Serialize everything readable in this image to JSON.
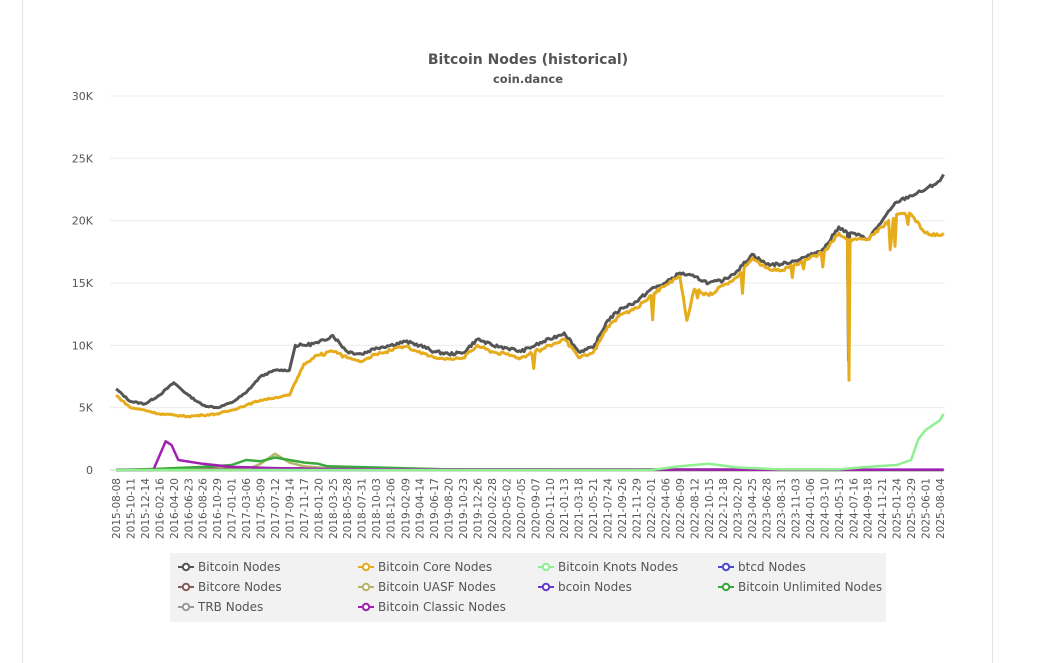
{
  "chart_data": {
    "type": "line",
    "title": "Bitcoin Nodes (historical)",
    "subtitle": "coin.dance",
    "xlabel": "",
    "ylabel": "",
    "ylim": [
      0,
      30000
    ],
    "y_ticks": [
      "0",
      "5K",
      "10K",
      "15K",
      "20K",
      "25K",
      "30K"
    ],
    "y_tick_values": [
      0,
      5000,
      10000,
      15000,
      20000,
      25000,
      30000
    ],
    "grid": true,
    "legend_position": "bottom",
    "x_ticks": [
      "2015-08-08",
      "2015-10-11",
      "2015-12-14",
      "2016-02-16",
      "2016-04-20",
      "2016-06-23",
      "2016-08-26",
      "2016-10-29",
      "2017-01-01",
      "2017-03-06",
      "2017-05-09",
      "2017-07-12",
      "2017-09-14",
      "2017-11-17",
      "2018-01-20",
      "2018-03-25",
      "2018-05-28",
      "2018-07-31",
      "2018-10-03",
      "2018-12-06",
      "2019-02-09",
      "2019-04-14",
      "2019-06-17",
      "2019-08-20",
      "2019-10-23",
      "2019-12-26",
      "2020-02-28",
      "2020-05-02",
      "2020-07-05",
      "2020-09-07",
      "2020-11-10",
      "2021-01-13",
      "2021-03-18",
      "2021-05-21",
      "2021-07-24",
      "2021-09-26",
      "2021-11-29",
      "2022-02-01",
      "2022-04-06",
      "2022-06-09",
      "2022-08-12",
      "2022-10-15",
      "2022-12-18",
      "2023-02-20",
      "2023-04-25",
      "2023-06-28",
      "2023-08-31",
      "2023-11-03",
      "2024-01-06",
      "2024-03-10",
      "2024-05-13",
      "2024-07-16",
      "2024-09-18",
      "2024-11-21",
      "2025-01-24",
      "2025-03-29",
      "2025-06-01",
      "2025-08-04"
    ],
    "x_range": [
      "2015-08-08",
      "2025-08-20"
    ],
    "series": [
      {
        "name": "Bitcoin Nodes",
        "color": "#555555",
        "points": [
          [
            "2015-08-08",
            6500
          ],
          [
            "2015-10-11",
            5500
          ],
          [
            "2015-12-14",
            5300
          ],
          [
            "2016-02-16",
            6000
          ],
          [
            "2016-04-20",
            7000
          ],
          [
            "2016-06-23",
            6000
          ],
          [
            "2016-08-26",
            5200
          ],
          [
            "2016-10-29",
            5000
          ],
          [
            "2017-01-01",
            5400
          ],
          [
            "2017-03-06",
            6200
          ],
          [
            "2017-05-09",
            7500
          ],
          [
            "2017-07-12",
            8000
          ],
          [
            "2017-09-14",
            8000
          ],
          [
            "2017-10-10",
            10000
          ],
          [
            "2017-11-17",
            10000
          ],
          [
            "2018-01-20",
            10200
          ],
          [
            "2018-03-25",
            10800
          ],
          [
            "2018-05-28",
            9500
          ],
          [
            "2018-07-31",
            9300
          ],
          [
            "2018-10-03",
            9800
          ],
          [
            "2018-12-06",
            10000
          ],
          [
            "2019-02-09",
            10300
          ],
          [
            "2019-04-14",
            10000
          ],
          [
            "2019-06-17",
            9500
          ],
          [
            "2019-08-20",
            9300
          ],
          [
            "2019-10-23",
            9400
          ],
          [
            "2019-12-26",
            10500
          ],
          [
            "2020-02-28",
            10000
          ],
          [
            "2020-05-02",
            9800
          ],
          [
            "2020-07-05",
            9500
          ],
          [
            "2020-09-07",
            10000
          ],
          [
            "2020-11-10",
            10500
          ],
          [
            "2021-01-13",
            11000
          ],
          [
            "2021-03-18",
            9500
          ],
          [
            "2021-05-21",
            9800
          ],
          [
            "2021-07-24",
            12000
          ],
          [
            "2021-09-26",
            13000
          ],
          [
            "2021-11-29",
            13500
          ],
          [
            "2022-02-01",
            14500
          ],
          [
            "2022-04-06",
            15000
          ],
          [
            "2022-06-09",
            15800
          ],
          [
            "2022-08-12",
            15500
          ],
          [
            "2022-10-15",
            15000
          ],
          [
            "2022-12-18",
            15200
          ],
          [
            "2023-02-20",
            16000
          ],
          [
            "2023-04-25",
            17300
          ],
          [
            "2023-06-28",
            16500
          ],
          [
            "2023-08-31",
            16500
          ],
          [
            "2023-11-03",
            16800
          ],
          [
            "2024-01-06",
            17200
          ],
          [
            "2024-03-10",
            17800
          ],
          [
            "2024-05-13",
            19500
          ],
          [
            "2024-06-20",
            19000
          ],
          [
            "2024-06-25",
            8800
          ],
          [
            "2024-06-30",
            19000
          ],
          [
            "2024-07-16",
            19000
          ],
          [
            "2024-09-18",
            18500
          ],
          [
            "2024-11-21",
            20000
          ],
          [
            "2025-01-24",
            21500
          ],
          [
            "2025-03-29",
            22000
          ],
          [
            "2025-06-01",
            22500
          ],
          [
            "2025-08-04",
            23200
          ],
          [
            "2025-08-20",
            23700
          ]
        ]
      },
      {
        "name": "Bitcoin Core Nodes",
        "color": "#e6ac1c",
        "points": [
          [
            "2015-08-08",
            6000
          ],
          [
            "2015-10-11",
            5000
          ],
          [
            "2015-12-14",
            4800
          ],
          [
            "2016-02-16",
            4500
          ],
          [
            "2016-04-20",
            4400
          ],
          [
            "2016-06-23",
            4300
          ],
          [
            "2016-08-26",
            4400
          ],
          [
            "2016-10-29",
            4500
          ],
          [
            "2017-01-01",
            4800
          ],
          [
            "2017-03-06",
            5200
          ],
          [
            "2017-05-09",
            5600
          ],
          [
            "2017-07-12",
            5800
          ],
          [
            "2017-09-14",
            6000
          ],
          [
            "2017-11-17",
            8500
          ],
          [
            "2018-01-20",
            9200
          ],
          [
            "2018-03-25",
            9500
          ],
          [
            "2018-05-28",
            9000
          ],
          [
            "2018-07-31",
            8700
          ],
          [
            "2018-10-03",
            9300
          ],
          [
            "2018-12-06",
            9600
          ],
          [
            "2019-02-09",
            9900
          ],
          [
            "2019-04-14",
            9500
          ],
          [
            "2019-06-17",
            9000
          ],
          [
            "2019-08-20",
            8900
          ],
          [
            "2019-10-23",
            9000
          ],
          [
            "2019-12-26",
            10000
          ],
          [
            "2020-02-28",
            9500
          ],
          [
            "2020-05-02",
            9300
          ],
          [
            "2020-07-05",
            9000
          ],
          [
            "2020-09-07",
            9500
          ],
          [
            "2020-11-10",
            10000
          ],
          [
            "2021-01-13",
            10500
          ],
          [
            "2021-03-18",
            9000
          ],
          [
            "2021-05-21",
            9400
          ],
          [
            "2021-07-24",
            11500
          ],
          [
            "2021-09-26",
            12500
          ],
          [
            "2021-11-29",
            13000
          ],
          [
            "2022-02-01",
            14000
          ],
          [
            "2022-04-06",
            14800
          ],
          [
            "2022-06-09",
            15500
          ],
          [
            "2022-07-10",
            12000
          ],
          [
            "2022-08-12",
            14500
          ],
          [
            "2022-10-15",
            14000
          ],
          [
            "2022-12-18",
            14800
          ],
          [
            "2023-02-20",
            15500
          ],
          [
            "2023-04-25",
            17000
          ],
          [
            "2023-06-28",
            16200
          ],
          [
            "2023-08-31",
            16000
          ],
          [
            "2023-11-03",
            16500
          ],
          [
            "2024-01-06",
            17000
          ],
          [
            "2024-03-10",
            17500
          ],
          [
            "2024-05-13",
            19000
          ],
          [
            "2024-06-20",
            18500
          ],
          [
            "2024-06-27",
            7200
          ],
          [
            "2024-07-02",
            18500
          ],
          [
            "2024-07-16",
            18500
          ],
          [
            "2024-09-18",
            18500
          ],
          [
            "2024-11-21",
            19500
          ],
          [
            "2025-01-24",
            20500
          ],
          [
            "2025-03-29",
            20500
          ],
          [
            "2025-06-01",
            19000
          ],
          [
            "2025-08-04",
            18800
          ],
          [
            "2025-08-20",
            19000
          ]
        ]
      },
      {
        "name": "Bitcoin Knots Nodes",
        "color": "#8ff08f",
        "points": [
          [
            "2015-08-08",
            0
          ],
          [
            "2022-02-01",
            0
          ],
          [
            "2022-06-09",
            300
          ],
          [
            "2022-10-15",
            500
          ],
          [
            "2023-02-20",
            200
          ],
          [
            "2023-08-31",
            50
          ],
          [
            "2024-05-13",
            50
          ],
          [
            "2024-09-18",
            250
          ],
          [
            "2025-01-24",
            400
          ],
          [
            "2025-03-29",
            800
          ],
          [
            "2025-05-01",
            2500
          ],
          [
            "2025-06-01",
            3200
          ],
          [
            "2025-08-04",
            4000
          ],
          [
            "2025-08-20",
            4500
          ]
        ]
      },
      {
        "name": "btcd Nodes",
        "color": "#4a4ad0",
        "points": [
          [
            "2015-08-08",
            30
          ],
          [
            "2025-08-20",
            30
          ]
        ]
      },
      {
        "name": "Bitcore Nodes",
        "color": "#8a5a5a",
        "points": [
          [
            "2015-08-08",
            0
          ],
          [
            "2016-06-23",
            100
          ],
          [
            "2018-03-25",
            150
          ],
          [
            "2019-08-20",
            50
          ],
          [
            "2025-08-20",
            20
          ]
        ]
      },
      {
        "name": "Bitcoin UASF Nodes",
        "color": "#b5b56a",
        "points": [
          [
            "2015-08-08",
            0
          ],
          [
            "2017-03-06",
            0
          ],
          [
            "2017-05-09",
            500
          ],
          [
            "2017-07-12",
            1300
          ],
          [
            "2017-09-14",
            600
          ],
          [
            "2017-11-17",
            300
          ],
          [
            "2018-03-25",
            100
          ],
          [
            "2018-12-06",
            0
          ],
          [
            "2025-08-20",
            0
          ]
        ]
      },
      {
        "name": "bcoin Nodes",
        "color": "#6a3ad0",
        "points": [
          [
            "2015-08-08",
            0
          ],
          [
            "2025-08-20",
            0
          ]
        ]
      },
      {
        "name": "Bitcoin Unlimited Nodes",
        "color": "#3aa83a",
        "points": [
          [
            "2015-08-08",
            0
          ],
          [
            "2016-02-16",
            100
          ],
          [
            "2016-08-26",
            250
          ],
          [
            "2017-01-01",
            400
          ],
          [
            "2017-03-06",
            800
          ],
          [
            "2017-05-09",
            700
          ],
          [
            "2017-07-12",
            1000
          ],
          [
            "2017-09-14",
            800
          ],
          [
            "2017-11-17",
            600
          ],
          [
            "2018-01-20",
            500
          ],
          [
            "2018-03-01",
            300
          ],
          [
            "2018-10-03",
            200
          ],
          [
            "2019-08-20",
            50
          ],
          [
            "2025-08-20",
            10
          ]
        ]
      },
      {
        "name": "TRB Nodes",
        "color": "#999999",
        "points": [
          [
            "2015-08-08",
            0
          ],
          [
            "2025-08-20",
            0
          ]
        ]
      },
      {
        "name": "Bitcoin Classic Nodes",
        "color": "#a020b0",
        "points": [
          [
            "2015-08-08",
            0
          ],
          [
            "2016-01-20",
            0
          ],
          [
            "2016-03-15",
            2300
          ],
          [
            "2016-04-10",
            2000
          ],
          [
            "2016-05-10",
            800
          ],
          [
            "2016-08-26",
            500
          ],
          [
            "2017-01-01",
            250
          ],
          [
            "2017-07-12",
            150
          ],
          [
            "2018-03-25",
            80
          ],
          [
            "2019-08-20",
            40
          ],
          [
            "2025-08-20",
            20
          ]
        ]
      }
    ]
  }
}
